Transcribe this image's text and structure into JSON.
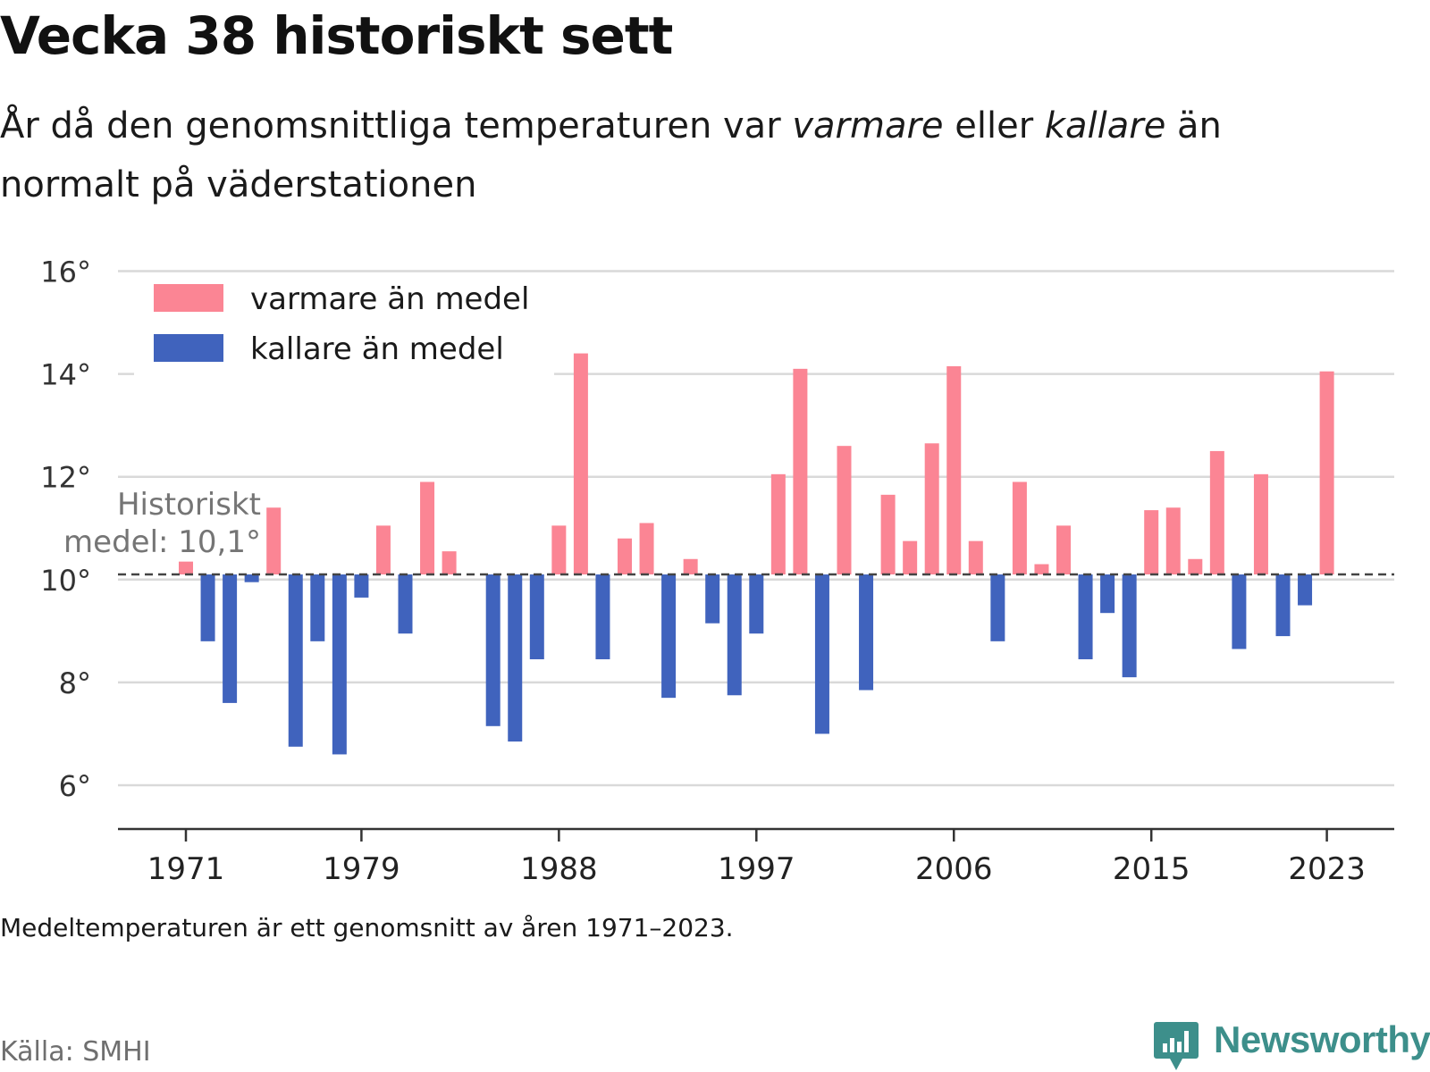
{
  "title": "Vecka 38 historiskt sett",
  "subtitle": {
    "part1": "År då den genomsnittliga temperaturen var ",
    "warm_word": "varmare",
    "part2": " eller ",
    "cold_word": "kallare",
    "part3": " än normalt på väderstationen"
  },
  "footnote": "Medeltemperaturen är ett genomsnitt av åren 1971–2023.",
  "source": "Källa: SMHI",
  "brand": "Newsworthy",
  "colors": {
    "warm": "#fb8594",
    "cold": "#4063bd",
    "grid": "#d9d9d9",
    "axis": "#333333",
    "mean_line": "#444444",
    "brand": "#3d8f8b"
  },
  "chart_data": {
    "type": "bar",
    "baseline": 10.1,
    "baseline_label": [
      "Historiskt",
      "medel: 10,1°"
    ],
    "ylim": [
      5.6,
      16.2
    ],
    "yticks": [
      6,
      8,
      10,
      12,
      14,
      16
    ],
    "ytick_labels": [
      "6°",
      "8°",
      "10°",
      "12°",
      "14°",
      "16°"
    ],
    "xticks": [
      1971,
      1979,
      1988,
      1997,
      2006,
      2015,
      2023
    ],
    "xtick_labels": [
      "1971",
      "1979",
      "1988",
      "1997",
      "2006",
      "2015",
      "2023"
    ],
    "legend_position": "top-left",
    "legend": [
      {
        "label": "varmare än medel",
        "color": "#fb8594"
      },
      {
        "label": "kallare än medel",
        "color": "#4063bd"
      }
    ],
    "grid": true,
    "x": [
      1971,
      1972,
      1973,
      1974,
      1975,
      1976,
      1977,
      1978,
      1979,
      1980,
      1981,
      1982,
      1983,
      1984,
      1985,
      1986,
      1987,
      1988,
      1989,
      1990,
      1991,
      1992,
      1993,
      1994,
      1995,
      1996,
      1997,
      1998,
      1999,
      2000,
      2001,
      2002,
      2003,
      2004,
      2005,
      2006,
      2007,
      2008,
      2009,
      2010,
      2011,
      2012,
      2013,
      2014,
      2015,
      2016,
      2017,
      2018,
      2019,
      2020,
      2021,
      2022,
      2023
    ],
    "values": [
      10.35,
      8.8,
      7.6,
      9.95,
      11.4,
      6.75,
      8.8,
      6.6,
      9.65,
      11.05,
      8.95,
      11.9,
      10.55,
      null,
      7.15,
      6.85,
      8.45,
      11.05,
      14.4,
      8.45,
      10.8,
      11.1,
      7.7,
      10.4,
      9.15,
      7.75,
      8.95,
      12.05,
      14.1,
      7.0,
      12.6,
      7.85,
      11.65,
      10.75,
      12.65,
      14.15,
      10.75,
      8.8,
      11.9,
      10.3,
      11.05,
      8.45,
      9.35,
      8.1,
      11.35,
      11.4,
      10.4,
      12.5,
      8.65,
      12.05,
      8.9,
      9.5,
      14.05
    ]
  }
}
